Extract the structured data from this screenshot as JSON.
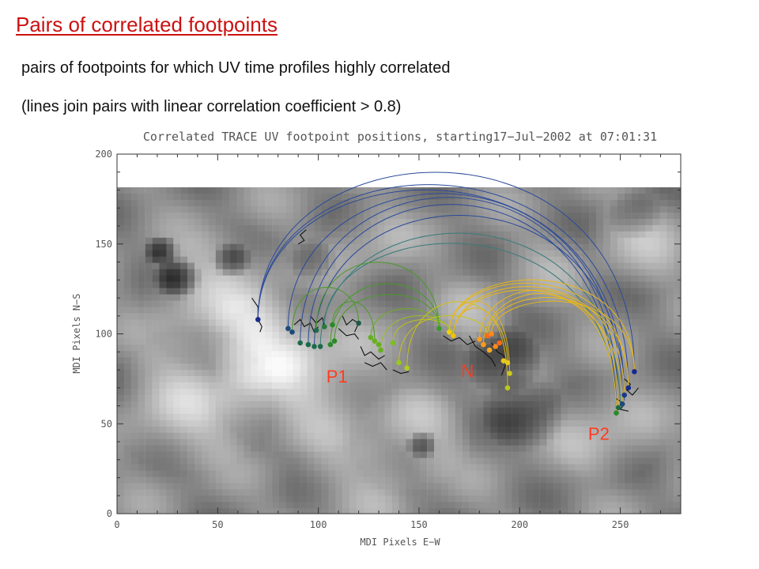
{
  "slide": {
    "title": "Pairs of correlated  footpoints",
    "line1": "pairs of footpoints for which UV time profiles highly correlated",
    "line2": "(lines join pairs with linear correlation coefficient > 0.8)"
  },
  "chart_data": {
    "type": "scatter",
    "title": "Correlated TRACE UV footpoint positions, starting17−Jul−2002 at 07:01:31",
    "xlabel": "MDI Pixels E−W",
    "ylabel": "MDI Pixels N−S",
    "xlim": [
      0,
      280
    ],
    "ylim": [
      0,
      200
    ],
    "image_top_y": 180,
    "xticks": [
      0,
      50,
      100,
      150,
      200,
      250
    ],
    "yticks": [
      0,
      50,
      100,
      150,
      200
    ],
    "annotations": [
      {
        "text": "P1",
        "x": 104,
        "y": 73
      },
      {
        "text": "N",
        "x": 171,
        "y": 76
      },
      {
        "text": "P2",
        "x": 234,
        "y": 41
      }
    ],
    "colors": {
      "annotation": "#ff3b1f",
      "blue_arc": "#2a4a9a",
      "green_arc": "#4a9a28",
      "yellow_arc": "#e0b020",
      "title_red": "#cc1111"
    },
    "footpoints": [
      {
        "x": 70,
        "y": 108,
        "color": "#1a2a8a"
      },
      {
        "x": 85,
        "y": 103,
        "color": "#1e4a7a"
      },
      {
        "x": 87,
        "y": 101,
        "color": "#1e4a7a"
      },
      {
        "x": 91,
        "y": 95,
        "color": "#1e6a4a"
      },
      {
        "x": 95,
        "y": 94,
        "color": "#1e6a4a"
      },
      {
        "x": 98,
        "y": 93,
        "color": "#1e6a4a"
      },
      {
        "x": 99,
        "y": 102,
        "color": "#1e6a4a"
      },
      {
        "x": 101,
        "y": 93,
        "color": "#1e6a4a"
      },
      {
        "x": 103,
        "y": 104,
        "color": "#2a7a3a"
      },
      {
        "x": 106,
        "y": 94,
        "color": "#2a8a2a"
      },
      {
        "x": 107,
        "y": 105,
        "color": "#2a8a2a"
      },
      {
        "x": 108,
        "y": 96,
        "color": "#2a8a2a"
      },
      {
        "x": 120,
        "y": 106,
        "color": "#1e5a4a"
      },
      {
        "x": 126,
        "y": 98,
        "color": "#66b020"
      },
      {
        "x": 128,
        "y": 96,
        "color": "#66b020"
      },
      {
        "x": 130,
        "y": 94,
        "color": "#66b020"
      },
      {
        "x": 131,
        "y": 91,
        "color": "#66b020"
      },
      {
        "x": 137,
        "y": 95,
        "color": "#7ac020"
      },
      {
        "x": 140,
        "y": 84,
        "color": "#9ac81e"
      },
      {
        "x": 144,
        "y": 81,
        "color": "#b0cc1e"
      },
      {
        "x": 160,
        "y": 103,
        "color": "#3a9a2a"
      },
      {
        "x": 165,
        "y": 101,
        "color": "#f0d000"
      },
      {
        "x": 167,
        "y": 99,
        "color": "#f0c000"
      },
      {
        "x": 180,
        "y": 97,
        "color": "#ff9a1a"
      },
      {
        "x": 182,
        "y": 94,
        "color": "#ff9a1a"
      },
      {
        "x": 184,
        "y": 99,
        "color": "#ff6a1a"
      },
      {
        "x": 185,
        "y": 91,
        "color": "#ffaa20"
      },
      {
        "x": 186,
        "y": 100,
        "color": "#ff8a1a"
      },
      {
        "x": 188,
        "y": 93,
        "color": "#ff8a1a"
      },
      {
        "x": 190,
        "y": 95,
        "color": "#ff6a1a"
      },
      {
        "x": 192,
        "y": 85,
        "color": "#e8c818"
      },
      {
        "x": 194,
        "y": 84,
        "color": "#e8c818"
      },
      {
        "x": 195,
        "y": 78,
        "color": "#ccc818"
      },
      {
        "x": 194,
        "y": 70,
        "color": "#bac820"
      },
      {
        "x": 248,
        "y": 56,
        "color": "#2a8a2a"
      },
      {
        "x": 249,
        "y": 59,
        "color": "#1e6a4a"
      },
      {
        "x": 251,
        "y": 61,
        "color": "#1e4a7a"
      },
      {
        "x": 252,
        "y": 66,
        "color": "#1a3a8a"
      },
      {
        "x": 254,
        "y": 70,
        "color": "#1a2a8a"
      },
      {
        "x": 257,
        "y": 79,
        "color": "#1a2a8a"
      }
    ],
    "pairs": [
      {
        "from": [
          70,
          108
        ],
        "to": [
          257,
          79
        ],
        "peak": 190,
        "color": "#2a4a9a"
      },
      {
        "from": [
          70,
          108
        ],
        "to": [
          254,
          70
        ],
        "peak": 183,
        "color": "#2a4a9a"
      },
      {
        "from": [
          70,
          108
        ],
        "to": [
          252,
          66
        ],
        "peak": 180,
        "color": "#2a4a9a"
      },
      {
        "from": [
          85,
          103
        ],
        "to": [
          251,
          61
        ],
        "peak": 178,
        "color": "#2a4a9a"
      },
      {
        "from": [
          91,
          95
        ],
        "to": [
          249,
          59
        ],
        "peak": 176,
        "color": "#2a4a9a"
      },
      {
        "from": [
          95,
          94
        ],
        "to": [
          248,
          56
        ],
        "peak": 172,
        "color": "#2a4a9a"
      },
      {
        "from": [
          98,
          93
        ],
        "to": [
          252,
          63
        ],
        "peak": 166,
        "color": "#2a4a9a"
      },
      {
        "from": [
          101,
          93
        ],
        "to": [
          250,
          58
        ],
        "peak": 156,
        "color": "#3a7a7a"
      },
      {
        "from": [
          103,
          104
        ],
        "to": [
          248,
          56
        ],
        "peak": 150,
        "color": "#3a7a7a"
      },
      {
        "from": [
          99,
          102
        ],
        "to": [
          160,
          103
        ],
        "peak": 140,
        "color": "#4a9a28"
      },
      {
        "from": [
          87,
          101
        ],
        "to": [
          120,
          106
        ],
        "peak": 126,
        "color": "#4a9a28"
      },
      {
        "from": [
          106,
          94
        ],
        "to": [
          160,
          103
        ],
        "peak": 128,
        "color": "#4a9a28"
      },
      {
        "from": [
          107,
          105
        ],
        "to": [
          128,
          96
        ],
        "peak": 118,
        "color": "#4a9a28"
      },
      {
        "from": [
          108,
          96
        ],
        "to": [
          160,
          103
        ],
        "peak": 122,
        "color": "#4a9a28"
      },
      {
        "from": [
          126,
          98
        ],
        "to": [
          160,
          103
        ],
        "peak": 114,
        "color": "#6ab020"
      },
      {
        "from": [
          131,
          91
        ],
        "to": [
          165,
          101
        ],
        "peak": 110,
        "color": "#9ac020"
      },
      {
        "from": [
          137,
          95
        ],
        "to": [
          167,
          99
        ],
        "peak": 108,
        "color": "#b8c418"
      },
      {
        "from": [
          140,
          84
        ],
        "to": [
          184,
          99
        ],
        "peak": 110,
        "color": "#c8c418"
      },
      {
        "from": [
          144,
          81
        ],
        "to": [
          194,
          84
        ],
        "peak": 118,
        "color": "#d0c018"
      },
      {
        "from": [
          165,
          101
        ],
        "to": [
          195,
          78
        ],
        "peak": 118,
        "color": "#e0b020"
      },
      {
        "from": [
          167,
          99
        ],
        "to": [
          194,
          70
        ],
        "peak": 114,
        "color": "#e0b020"
      },
      {
        "from": [
          165,
          101
        ],
        "to": [
          257,
          79
        ],
        "peak": 130,
        "color": "#e8b818"
      },
      {
        "from": [
          165,
          101
        ],
        "to": [
          254,
          70
        ],
        "peak": 128,
        "color": "#e8b818"
      },
      {
        "from": [
          167,
          99
        ],
        "to": [
          252,
          66
        ],
        "peak": 126,
        "color": "#e8b818"
      },
      {
        "from": [
          167,
          99
        ],
        "to": [
          251,
          61
        ],
        "peak": 124,
        "color": "#e8b818"
      },
      {
        "from": [
          180,
          97
        ],
        "to": [
          249,
          59
        ],
        "peak": 124,
        "color": "#e8b818"
      },
      {
        "from": [
          182,
          94
        ],
        "to": [
          248,
          56
        ],
        "peak": 122,
        "color": "#e8b818"
      },
      {
        "from": [
          184,
          99
        ],
        "to": [
          254,
          70
        ],
        "peak": 120,
        "color": "#e8b818"
      },
      {
        "from": [
          186,
          100
        ],
        "to": [
          257,
          79
        ],
        "peak": 118,
        "color": "#e8b818"
      }
    ],
    "tracks": [
      [
        [
          67,
          120
        ],
        [
          70,
          115
        ],
        [
          70,
          108
        ],
        [
          72,
          104
        ],
        [
          71,
          101
        ]
      ],
      [
        [
          88,
          105
        ],
        [
          91,
          108
        ],
        [
          93,
          104
        ],
        [
          96,
          106
        ],
        [
          98,
          101
        ],
        [
          100,
          104
        ]
      ],
      [
        [
          96,
          110
        ],
        [
          99,
          106
        ],
        [
          102,
          109
        ],
        [
          103,
          104
        ]
      ],
      [
        [
          112,
          110
        ],
        [
          114,
          105
        ],
        [
          117,
          108
        ],
        [
          120,
          106
        ],
        [
          118,
          101
        ]
      ],
      [
        [
          110,
          103
        ],
        [
          114,
          99
        ],
        [
          118,
          100
        ],
        [
          120,
          97
        ]
      ],
      [
        [
          121,
          93
        ],
        [
          123,
          88
        ],
        [
          126,
          90
        ],
        [
          130,
          86
        ],
        [
          133,
          88
        ]
      ],
      [
        [
          123,
          84
        ],
        [
          127,
          82
        ],
        [
          131,
          84
        ],
        [
          134,
          80
        ]
      ],
      [
        [
          137,
          80
        ],
        [
          141,
          78
        ],
        [
          145,
          79
        ]
      ],
      [
        [
          162,
          99
        ],
        [
          166,
          96
        ],
        [
          170,
          98
        ],
        [
          174,
          94
        ],
        [
          178,
          96
        ]
      ],
      [
        [
          175,
          99
        ],
        [
          178,
          93
        ],
        [
          182,
          90
        ],
        [
          186,
          86
        ],
        [
          188,
          82
        ]
      ],
      [
        [
          186,
          95
        ],
        [
          189,
          90
        ],
        [
          192,
          88
        ],
        [
          193,
          83
        ],
        [
          191,
          77
        ]
      ],
      [
        [
          252,
          75
        ],
        [
          255,
          72
        ],
        [
          253,
          69
        ],
        [
          256,
          66
        ],
        [
          259,
          70
        ]
      ],
      [
        [
          248,
          64
        ],
        [
          252,
          61
        ],
        [
          250,
          58
        ],
        [
          254,
          57
        ]
      ],
      [
        [
          90,
          150
        ],
        [
          93,
          152
        ],
        [
          91,
          155
        ],
        [
          94,
          158
        ]
      ]
    ]
  }
}
